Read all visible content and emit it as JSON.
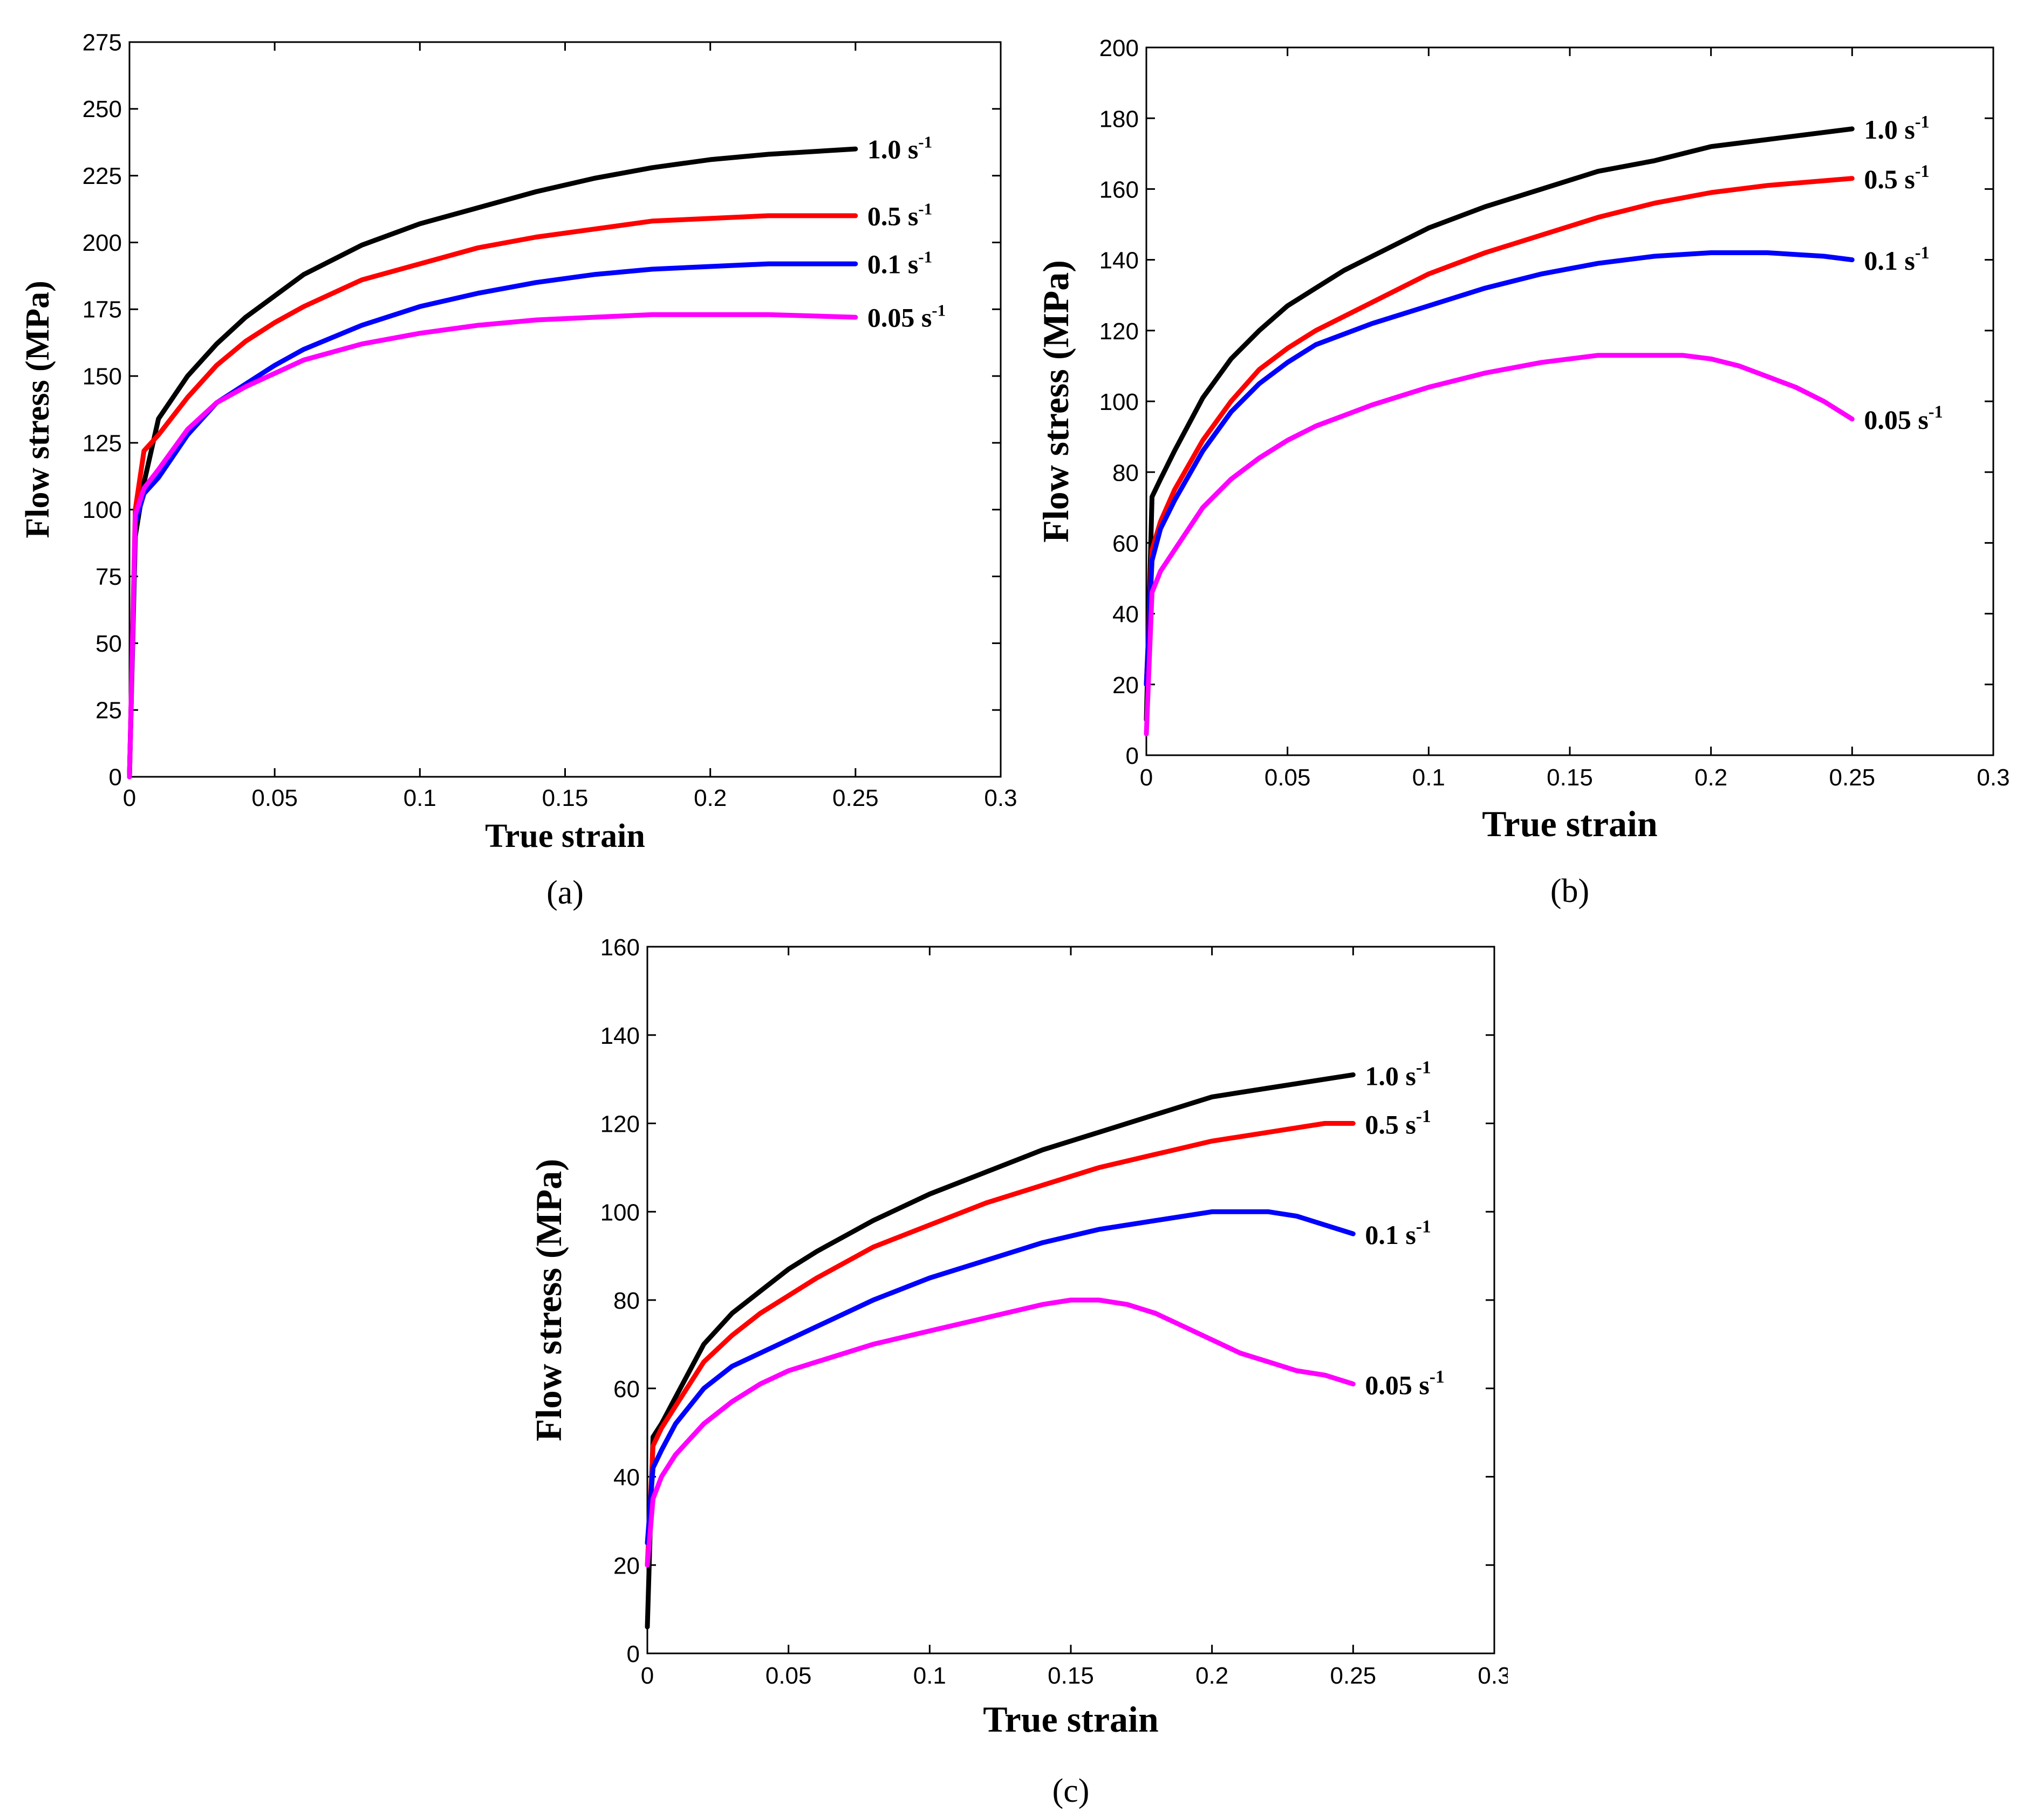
{
  "figure": {
    "panels": [
      {
        "label": "(a)",
        "x_title": "True strain",
        "y_title": "Flow stress (MPa)",
        "x_ticks": [
          "0",
          "0.05",
          "0.1",
          "0.15",
          "0.2",
          "0.25",
          "0.3"
        ],
        "y_ticks": [
          "0",
          "25",
          "50",
          "75",
          "100",
          "125",
          "150",
          "175",
          "200",
          "225",
          "250",
          "275"
        ],
        "series_labels": [
          {
            "base": "1.0 s",
            "sup": "-1"
          },
          {
            "base": "0.5 s",
            "sup": "-1"
          },
          {
            "base": "0.1 s",
            "sup": "-1"
          },
          {
            "base": "0.05 s",
            "sup": "-1"
          }
        ]
      },
      {
        "label": "(b)",
        "x_title": "True strain",
        "y_title": "Flow stress (MPa)",
        "x_ticks": [
          "0",
          "0.05",
          "0.1",
          "0.15",
          "0.2",
          "0.25",
          "0.3"
        ],
        "y_ticks": [
          "0",
          "20",
          "40",
          "60",
          "80",
          "100",
          "120",
          "140",
          "160",
          "180",
          "200"
        ],
        "series_labels": [
          {
            "base": "1.0 s",
            "sup": "-1"
          },
          {
            "base": "0.5 s",
            "sup": "-1"
          },
          {
            "base": "0.1 s",
            "sup": "-1"
          },
          {
            "base": "0.05 s",
            "sup": "-1"
          }
        ]
      },
      {
        "label": "(c)",
        "x_title": "True strain",
        "y_title": "Flow stress (MPa)",
        "x_ticks": [
          "0",
          "0.05",
          "0.1",
          "0.15",
          "0.2",
          "0.25",
          "0.3"
        ],
        "y_ticks": [
          "0",
          "20",
          "40",
          "60",
          "80",
          "100",
          "120",
          "140",
          "160"
        ],
        "series_labels": [
          {
            "base": "1.0 s",
            "sup": "-1"
          },
          {
            "base": "0.5 s",
            "sup": "-1"
          },
          {
            "base": "0.1 s",
            "sup": "-1"
          },
          {
            "base": "0.05 s",
            "sup": "-1"
          }
        ]
      }
    ]
  },
  "chart_data": [
    {
      "type": "line",
      "panel": "(a)",
      "title": "",
      "xlabel": "True strain",
      "ylabel": "Flow stress (MPa)",
      "xlim": [
        0,
        0.3
      ],
      "ylim": [
        0,
        275
      ],
      "grid": false,
      "series": [
        {
          "name": "1.0 s-1",
          "color": "#000000",
          "x": [
            0,
            0.002,
            0.005,
            0.01,
            0.02,
            0.03,
            0.04,
            0.05,
            0.06,
            0.08,
            0.1,
            0.12,
            0.14,
            0.16,
            0.18,
            0.2,
            0.22,
            0.25
          ],
          "y": [
            0,
            90,
            110,
            134,
            150,
            162,
            172,
            180,
            188,
            199,
            207,
            213,
            219,
            224,
            228,
            231,
            233,
            235
          ]
        },
        {
          "name": "0.5 s-1",
          "color": "#ff0000",
          "x": [
            0,
            0.002,
            0.005,
            0.01,
            0.02,
            0.03,
            0.04,
            0.05,
            0.06,
            0.08,
            0.1,
            0.12,
            0.14,
            0.16,
            0.18,
            0.2,
            0.22,
            0.25
          ],
          "y": [
            0,
            100,
            122,
            128,
            142,
            154,
            163,
            170,
            176,
            186,
            192,
            198,
            202,
            205,
            208,
            209,
            210,
            210
          ]
        },
        {
          "name": "0.1 s-1",
          "color": "#0000ff",
          "x": [
            0,
            0.002,
            0.005,
            0.01,
            0.015,
            0.02,
            0.03,
            0.04,
            0.05,
            0.06,
            0.08,
            0.1,
            0.12,
            0.14,
            0.16,
            0.18,
            0.2,
            0.22,
            0.25
          ],
          "y": [
            0,
            95,
            106,
            112,
            120,
            128,
            140,
            147,
            154,
            160,
            169,
            176,
            181,
            185,
            188,
            190,
            191,
            192,
            192
          ]
        },
        {
          "name": "0.05 s-1",
          "color": "#ff00ff",
          "x": [
            0,
            0.002,
            0.005,
            0.01,
            0.02,
            0.03,
            0.04,
            0.05,
            0.06,
            0.08,
            0.1,
            0.12,
            0.14,
            0.16,
            0.18,
            0.2,
            0.22,
            0.25
          ],
          "y": [
            0,
            98,
            108,
            115,
            130,
            140,
            146,
            151,
            156,
            162,
            166,
            169,
            171,
            172,
            173,
            173,
            173,
            172
          ]
        }
      ]
    },
    {
      "type": "line",
      "panel": "(b)",
      "title": "",
      "xlabel": "True strain",
      "ylabel": "Flow stress (MPa)",
      "xlim": [
        0,
        0.3
      ],
      "ylim": [
        0,
        200
      ],
      "grid": false,
      "series": [
        {
          "name": "1.0 s-1",
          "color": "#000000",
          "x": [
            0,
            0.002,
            0.005,
            0.01,
            0.02,
            0.03,
            0.04,
            0.05,
            0.06,
            0.07,
            0.08,
            0.1,
            0.12,
            0.14,
            0.16,
            0.18,
            0.2,
            0.22,
            0.25
          ],
          "y": [
            10,
            73,
            78,
            86,
            101,
            112,
            120,
            127,
            132,
            137,
            141,
            149,
            155,
            160,
            165,
            168,
            172,
            174,
            177
          ]
        },
        {
          "name": "0.5 s-1",
          "color": "#ff0000",
          "x": [
            0,
            0.002,
            0.005,
            0.01,
            0.02,
            0.03,
            0.04,
            0.05,
            0.06,
            0.08,
            0.1,
            0.12,
            0.14,
            0.16,
            0.18,
            0.2,
            0.22,
            0.25
          ],
          "y": [
            20,
            58,
            66,
            75,
            89,
            100,
            109,
            115,
            120,
            128,
            136,
            142,
            147,
            152,
            156,
            159,
            161,
            163
          ]
        },
        {
          "name": "0.1 s-1",
          "color": "#0000ff",
          "x": [
            0,
            0.002,
            0.005,
            0.01,
            0.02,
            0.03,
            0.04,
            0.05,
            0.06,
            0.08,
            0.1,
            0.12,
            0.14,
            0.16,
            0.18,
            0.2,
            0.22,
            0.24,
            0.25
          ],
          "y": [
            20,
            55,
            64,
            72,
            86,
            97,
            105,
            111,
            116,
            122,
            127,
            132,
            136,
            139,
            141,
            142,
            142,
            141,
            140
          ]
        },
        {
          "name": "0.05 s-1",
          "color": "#ff00ff",
          "x": [
            0,
            0.002,
            0.005,
            0.01,
            0.02,
            0.03,
            0.04,
            0.05,
            0.06,
            0.08,
            0.1,
            0.12,
            0.14,
            0.16,
            0.18,
            0.19,
            0.2,
            0.21,
            0.22,
            0.23,
            0.24,
            0.25
          ],
          "y": [
            6,
            46,
            52,
            58,
            70,
            78,
            84,
            89,
            93,
            99,
            104,
            108,
            111,
            113,
            113,
            113,
            112,
            110,
            107,
            104,
            100,
            95
          ]
        }
      ]
    },
    {
      "type": "line",
      "panel": "(c)",
      "title": "",
      "xlabel": "True strain",
      "ylabel": "Flow stress (MPa)",
      "xlim": [
        0,
        0.3
      ],
      "ylim": [
        0,
        160
      ],
      "grid": false,
      "series": [
        {
          "name": "1.0 s-1",
          "color": "#000000",
          "x": [
            0,
            0.002,
            0.005,
            0.01,
            0.02,
            0.03,
            0.04,
            0.05,
            0.06,
            0.08,
            0.1,
            0.12,
            0.14,
            0.16,
            0.18,
            0.2,
            0.22,
            0.24,
            0.25
          ],
          "y": [
            6,
            49,
            52,
            58,
            70,
            77,
            82,
            87,
            91,
            98,
            104,
            109,
            114,
            118,
            122,
            126,
            128,
            130,
            131
          ]
        },
        {
          "name": "0.5 s-1",
          "color": "#ff0000",
          "x": [
            0,
            0.002,
            0.005,
            0.01,
            0.02,
            0.03,
            0.04,
            0.05,
            0.06,
            0.08,
            0.1,
            0.12,
            0.14,
            0.16,
            0.18,
            0.2,
            0.22,
            0.24,
            0.25
          ],
          "y": [
            20,
            47,
            51,
            56,
            66,
            72,
            77,
            81,
            85,
            92,
            97,
            102,
            106,
            110,
            113,
            116,
            118,
            120,
            120
          ]
        },
        {
          "name": "0.1 s-1",
          "color": "#0000ff",
          "x": [
            0,
            0.002,
            0.005,
            0.01,
            0.02,
            0.03,
            0.04,
            0.05,
            0.06,
            0.08,
            0.1,
            0.12,
            0.14,
            0.16,
            0.18,
            0.2,
            0.21,
            0.22,
            0.23,
            0.24,
            0.25
          ],
          "y": [
            25,
            42,
            46,
            52,
            60,
            65,
            68,
            71,
            74,
            80,
            85,
            89,
            93,
            96,
            98,
            100,
            100,
            100,
            99,
            97,
            95
          ]
        },
        {
          "name": "0.05 s-1",
          "color": "#ff00ff",
          "x": [
            0,
            0.002,
            0.005,
            0.01,
            0.02,
            0.03,
            0.04,
            0.05,
            0.06,
            0.08,
            0.1,
            0.12,
            0.14,
            0.15,
            0.16,
            0.17,
            0.18,
            0.19,
            0.2,
            0.21,
            0.22,
            0.23,
            0.24,
            0.25
          ],
          "y": [
            20,
            35,
            40,
            45,
            52,
            57,
            61,
            64,
            66,
            70,
            73,
            76,
            79,
            80,
            80,
            79,
            77,
            74,
            71,
            68,
            66,
            64,
            63,
            61
          ]
        }
      ]
    }
  ]
}
